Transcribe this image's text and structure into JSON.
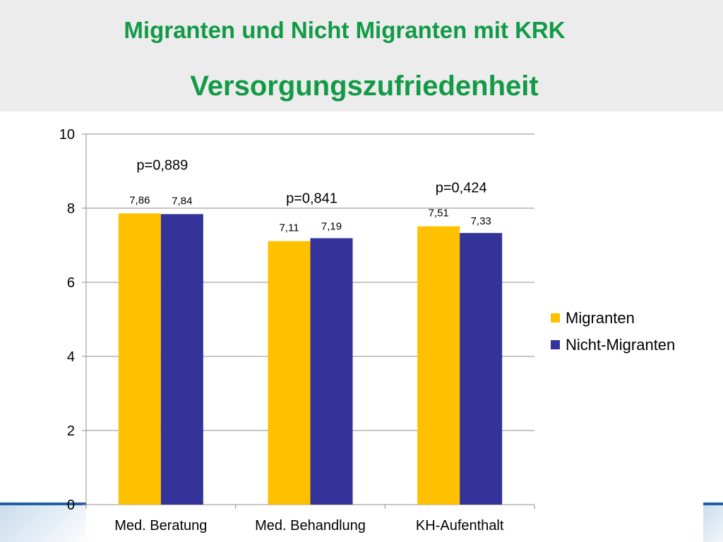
{
  "title": {
    "line1": "Migranten und Nicht Migranten mit KRK",
    "line2": "Versorgungszufriedenheit"
  },
  "chart_data": {
    "type": "bar",
    "categories": [
      "Med. Beratung",
      "Med. Behandlung",
      "KH-Aufenthalt"
    ],
    "series": [
      {
        "name": "Migranten",
        "values": [
          7.86,
          7.11,
          7.51
        ],
        "labels": [
          "7,86",
          "7,11",
          "7,51"
        ],
        "color": "#ffc000"
      },
      {
        "name": "Nicht-Migranten",
        "values": [
          7.84,
          7.19,
          7.33
        ],
        "labels": [
          "7,84",
          "7,19",
          "7,33"
        ],
        "color": "#333399"
      }
    ],
    "annotations": [
      "p=0,889",
      "p=0,841",
      "p=0,424"
    ],
    "ylim": [
      0,
      10
    ],
    "yticks": [
      0,
      2,
      4,
      6,
      8,
      10
    ],
    "ytick_labels": [
      "0",
      "2",
      "4",
      "6",
      "8",
      "10"
    ],
    "grid": true,
    "legend_position": "right"
  }
}
